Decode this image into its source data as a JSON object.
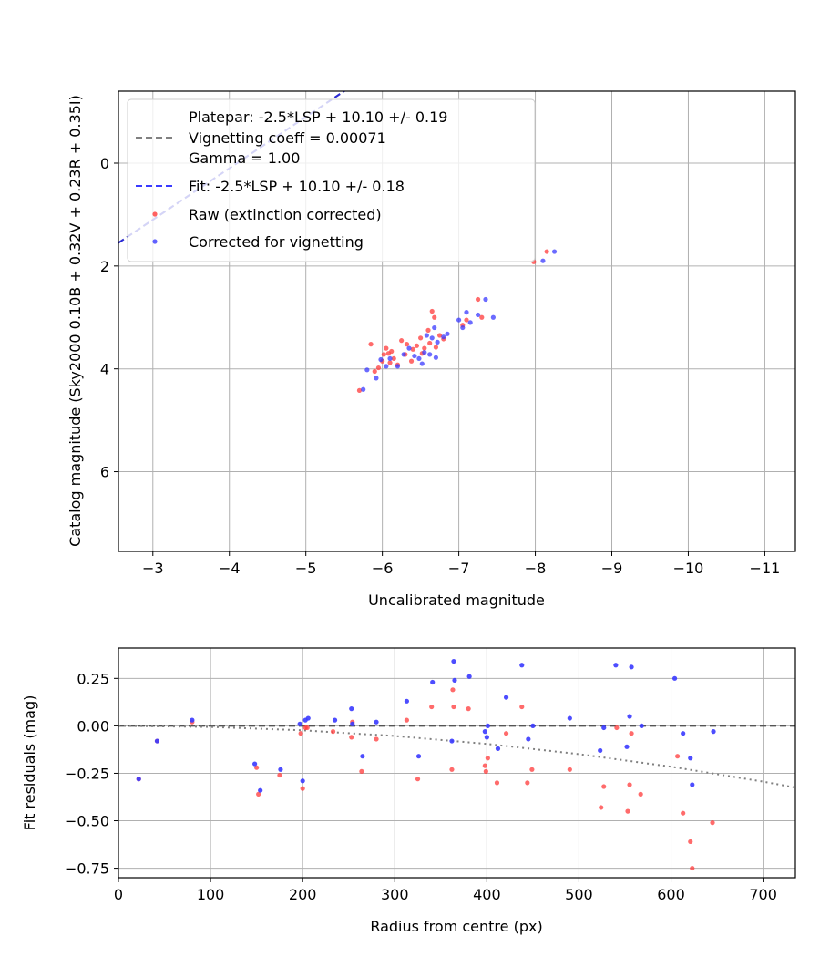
{
  "chart_data": [
    {
      "type": "scatter",
      "xlabel": "Uncalibrated magnitude",
      "ylabel": "Catalog magnitude (Sky2000 0.10B + 0.32V + 0.23R + 0.35I)",
      "xlim": [
        -2.55,
        -11.4
      ],
      "ylim": [
        7.55,
        -1.4
      ],
      "x_ticks": [
        -3,
        -4,
        -5,
        -6,
        -7,
        -8,
        -9,
        -10,
        -11
      ],
      "x_tick_labels": [
        "−3",
        "−4",
        "−5",
        "−6",
        "−7",
        "−8",
        "−9",
        "−10",
        "−11"
      ],
      "y_ticks": [
        0,
        2,
        4,
        6
      ],
      "y_tick_labels": [
        "0",
        "2",
        "4",
        "6"
      ],
      "grid": true,
      "legend_placement": "top-left",
      "legend": [
        {
          "label": "Platepar: -2.5*LSP + 10.10 +/- 0.19",
          "kind": "blank"
        },
        {
          "label": "Vignetting coeff = 0.00071",
          "kind": "dashed",
          "color": "#808080"
        },
        {
          "label": "Gamma = 1.00",
          "kind": "blank"
        },
        {
          "label": "Fit: -2.5*LSP + 10.10 +/- 0.18",
          "kind": "dashed",
          "color": "#3a3aff"
        },
        {
          "label": "Raw (extinction corrected)",
          "kind": "marker",
          "color": "#ff3a3a"
        },
        {
          "label": "Corrected for vignetting",
          "kind": "marker",
          "color": "#3a3aff"
        }
      ],
      "lines": [
        {
          "name": "Platepar",
          "slope": -2.5,
          "intercept": 10.1,
          "color": "#808080",
          "style": "dashed"
        },
        {
          "name": "Fit",
          "slope": -2.5,
          "intercept": 10.1,
          "color": "#2a2ad8",
          "style": "dashed"
        }
      ],
      "series": [
        {
          "name": "Raw (extinction corrected)",
          "color": "#ff3a3a",
          "points": [
            [
              -5.7,
              4.42
            ],
            [
              -5.85,
              3.52
            ],
            [
              -5.9,
              4.05
            ],
            [
              -5.95,
              3.98
            ],
            [
              -6.0,
              3.85
            ],
            [
              -6.02,
              3.72
            ],
            [
              -6.05,
              3.6
            ],
            [
              -6.08,
              3.7
            ],
            [
              -6.1,
              3.88
            ],
            [
              -6.12,
              3.66
            ],
            [
              -6.15,
              3.8
            ],
            [
              -6.2,
              3.92
            ],
            [
              -6.25,
              3.45
            ],
            [
              -6.3,
              3.72
            ],
            [
              -6.32,
              3.52
            ],
            [
              -6.38,
              3.85
            ],
            [
              -6.4,
              3.62
            ],
            [
              -6.45,
              3.55
            ],
            [
              -6.5,
              3.4
            ],
            [
              -6.52,
              3.7
            ],
            [
              -6.55,
              3.6
            ],
            [
              -6.6,
              3.25
            ],
            [
              -6.62,
              3.5
            ],
            [
              -6.65,
              2.88
            ],
            [
              -6.68,
              3.0
            ],
            [
              -6.7,
              3.58
            ],
            [
              -6.75,
              3.35
            ],
            [
              -6.8,
              3.42
            ],
            [
              -7.05,
              3.15
            ],
            [
              -7.1,
              3.05
            ],
            [
              -7.25,
              2.65
            ],
            [
              -7.3,
              3.0
            ],
            [
              -7.98,
              1.92
            ],
            [
              -8.15,
              1.72
            ]
          ]
        },
        {
          "name": "Corrected for vignetting",
          "color": "#3a3aff",
          "points": [
            [
              -5.75,
              4.4
            ],
            [
              -5.8,
              4.02
            ],
            [
              -5.92,
              4.18
            ],
            [
              -5.98,
              3.82
            ],
            [
              -6.05,
              3.95
            ],
            [
              -6.1,
              3.8
            ],
            [
              -6.2,
              3.95
            ],
            [
              -6.28,
              3.72
            ],
            [
              -6.35,
              3.6
            ],
            [
              -6.42,
              3.75
            ],
            [
              -6.48,
              3.8
            ],
            [
              -6.52,
              3.9
            ],
            [
              -6.55,
              3.68
            ],
            [
              -6.58,
              3.35
            ],
            [
              -6.62,
              3.72
            ],
            [
              -6.65,
              3.4
            ],
            [
              -6.68,
              3.2
            ],
            [
              -6.7,
              3.78
            ],
            [
              -6.72,
              3.48
            ],
            [
              -6.8,
              3.38
            ],
            [
              -6.85,
              3.32
            ],
            [
              -7.0,
              3.05
            ],
            [
              -7.05,
              3.2
            ],
            [
              -7.1,
              2.9
            ],
            [
              -7.15,
              3.1
            ],
            [
              -7.25,
              2.95
            ],
            [
              -7.35,
              2.65
            ],
            [
              -7.45,
              3.0
            ],
            [
              -8.1,
              1.9
            ],
            [
              -8.25,
              1.72
            ]
          ]
        }
      ]
    },
    {
      "type": "scatter",
      "xlabel": "Radius from centre (px)",
      "ylabel": "Fit residuals (mag)",
      "xlim": [
        0,
        735
      ],
      "ylim": [
        -0.8,
        0.41
      ],
      "x_ticks": [
        0,
        100,
        200,
        300,
        400,
        500,
        600,
        700
      ],
      "x_tick_labels": [
        "0",
        "100",
        "200",
        "300",
        "400",
        "500",
        "600",
        "700"
      ],
      "y_ticks": [
        0.25,
        0.0,
        -0.25,
        -0.5,
        -0.75
      ],
      "y_tick_labels": [
        "0.25",
        "0.00",
        "−0.25",
        "−0.50",
        "−0.75"
      ],
      "grid": true,
      "lines": [
        {
          "name": "zero",
          "value": 0.0,
          "color": "#555555",
          "style": "dashed"
        },
        {
          "name": "vignetting curve",
          "color": "#808080",
          "style": "dotted",
          "points": [
            [
              0,
              0.0
            ],
            [
              100,
              -0.0059
            ],
            [
              200,
              -0.0237
            ],
            [
              300,
              -0.0535
            ],
            [
              400,
              -0.0952
            ],
            [
              500,
              -0.149
            ],
            [
              600,
              -0.215
            ],
            [
              700,
              -0.294
            ],
            [
              735,
              -0.325
            ]
          ]
        }
      ],
      "series": [
        {
          "name": "Raw (extinction corrected)",
          "color": "#ff3a3a",
          "points": [
            [
              22,
              -0.28
            ],
            [
              42,
              -0.08
            ],
            [
              80,
              0.02
            ],
            [
              150,
              -0.22
            ],
            [
              152,
              -0.36
            ],
            [
              175,
              -0.26
            ],
            [
              198,
              -0.04
            ],
            [
              200,
              -0.33
            ],
            [
              203,
              -0.01
            ],
            [
              205,
              -0.01
            ],
            [
              233,
              -0.03
            ],
            [
              253,
              -0.06
            ],
            [
              254,
              0.02
            ],
            [
              264,
              -0.24
            ],
            [
              280,
              -0.07
            ],
            [
              313,
              0.03
            ],
            [
              325,
              -0.28
            ],
            [
              340,
              0.1
            ],
            [
              362,
              -0.23
            ],
            [
              363,
              0.19
            ],
            [
              364,
              0.1
            ],
            [
              380,
              0.09
            ],
            [
              398,
              -0.21
            ],
            [
              399,
              -0.24
            ],
            [
              401,
              -0.17
            ],
            [
              411,
              -0.3
            ],
            [
              421,
              -0.04
            ],
            [
              438,
              0.1
            ],
            [
              444,
              -0.3
            ],
            [
              449,
              -0.23
            ],
            [
              490,
              -0.23
            ],
            [
              524,
              -0.43
            ],
            [
              527,
              -0.32
            ],
            [
              541,
              -0.01
            ],
            [
              553,
              -0.45
            ],
            [
              555,
              -0.31
            ],
            [
              557,
              -0.04
            ],
            [
              567,
              -0.36
            ],
            [
              607,
              -0.16
            ],
            [
              613,
              -0.46
            ],
            [
              621,
              -0.61
            ],
            [
              623,
              -0.75
            ],
            [
              645,
              -0.51
            ]
          ]
        },
        {
          "name": "Corrected for vignetting",
          "color": "#3a3aff",
          "points": [
            [
              22,
              -0.28
            ],
            [
              42,
              -0.08
            ],
            [
              80,
              0.03
            ],
            [
              148,
              -0.2
            ],
            [
              154,
              -0.34
            ],
            [
              176,
              -0.23
            ],
            [
              197,
              0.01
            ],
            [
              200,
              -0.29
            ],
            [
              203,
              0.03
            ],
            [
              206,
              0.04
            ],
            [
              235,
              0.03
            ],
            [
              253,
              0.09
            ],
            [
              254,
              0.01
            ],
            [
              265,
              -0.16
            ],
            [
              280,
              0.02
            ],
            [
              313,
              0.13
            ],
            [
              326,
              -0.16
            ],
            [
              341,
              0.23
            ],
            [
              362,
              -0.08
            ],
            [
              364,
              0.34
            ],
            [
              365,
              0.24
            ],
            [
              381,
              0.26
            ],
            [
              398,
              -0.03
            ],
            [
              400,
              -0.06
            ],
            [
              401,
              0.0
            ],
            [
              412,
              -0.12
            ],
            [
              421,
              0.15
            ],
            [
              438,
              0.32
            ],
            [
              445,
              -0.07
            ],
            [
              450,
              0.0
            ],
            [
              490,
              0.04
            ],
            [
              523,
              -0.13
            ],
            [
              527,
              -0.01
            ],
            [
              540,
              0.32
            ],
            [
              552,
              -0.11
            ],
            [
              555,
              0.05
            ],
            [
              557,
              0.31
            ],
            [
              568,
              0.0
            ],
            [
              604,
              0.25
            ],
            [
              613,
              -0.04
            ],
            [
              621,
              -0.17
            ],
            [
              623,
              -0.31
            ],
            [
              646,
              -0.03
            ]
          ]
        }
      ]
    }
  ]
}
